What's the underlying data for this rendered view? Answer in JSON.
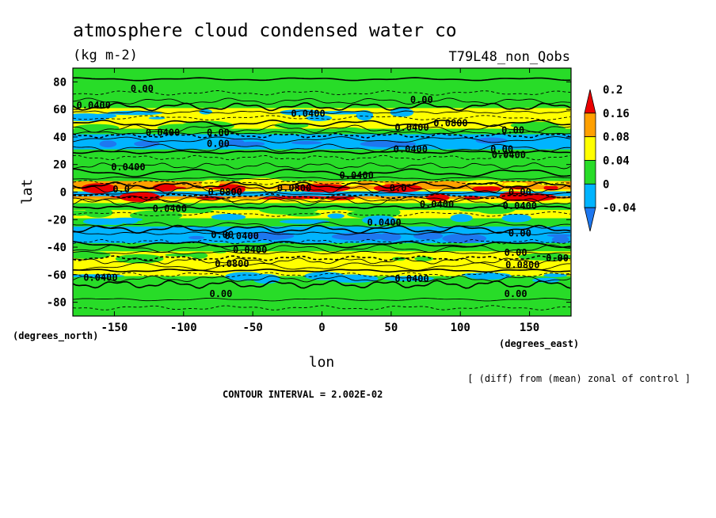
{
  "chart_data": {
    "type": "heatmap",
    "title": "atmosphere cloud condensed water co",
    "units": "(kg m-2)",
    "run_label": "T79L48_non_Qobs",
    "xlabel": "lon",
    "ylabel": "lat",
    "x_unit_label": "(degrees_east)",
    "y_unit_label": "(degrees_north)",
    "xlim": [
      -180,
      180
    ],
    "ylim": [
      -90,
      90
    ],
    "x_ticks": [
      -150,
      -100,
      -50,
      0,
      50,
      100,
      150
    ],
    "y_ticks": [
      80,
      60,
      40,
      20,
      0,
      -20,
      -40,
      -60,
      -80
    ],
    "colorbar": {
      "levels": [
        -0.04,
        0,
        0.04,
        0.08,
        0.16,
        0.2
      ],
      "tick_labels": [
        "-0.04",
        "0",
        "0.04",
        "0.08",
        "0.16",
        "0.2"
      ],
      "colors": [
        "#1e78f0",
        "#00b4ff",
        "#28dc28",
        "#ffff00",
        "#ffa000",
        "#eb0000"
      ]
    },
    "lat_profile": [
      {
        "lat": 85,
        "value": 0.0
      },
      {
        "lat": 75,
        "value": 0.0
      },
      {
        "lat": 68,
        "value": 0.01
      },
      {
        "lat": 64,
        "value": 0.02
      },
      {
        "lat": 58,
        "value": 0.05
      },
      {
        "lat": 52,
        "value": 0.05
      },
      {
        "lat": 48,
        "value": 0.06
      },
      {
        "lat": 44,
        "value": 0.03
      },
      {
        "lat": 40,
        "value": -0.02
      },
      {
        "lat": 34,
        "value": -0.03
      },
      {
        "lat": 28,
        "value": 0.01
      },
      {
        "lat": 22,
        "value": 0.02
      },
      {
        "lat": 16,
        "value": 0.03
      },
      {
        "lat": 10,
        "value": 0.02
      },
      {
        "lat": 6,
        "value": 0.08
      },
      {
        "lat": 3,
        "value": 0.14
      },
      {
        "lat": 1,
        "value": 0.06
      },
      {
        "lat": 0,
        "value": -0.02
      },
      {
        "lat": -2,
        "value": -0.03
      },
      {
        "lat": -4,
        "value": 0.1
      },
      {
        "lat": -6,
        "value": 0.06
      },
      {
        "lat": -10,
        "value": 0.03
      },
      {
        "lat": -16,
        "value": 0.04
      },
      {
        "lat": -22,
        "value": 0.01
      },
      {
        "lat": -28,
        "value": -0.03
      },
      {
        "lat": -34,
        "value": -0.03
      },
      {
        "lat": -40,
        "value": 0.01
      },
      {
        "lat": -46,
        "value": 0.05
      },
      {
        "lat": -52,
        "value": 0.07
      },
      {
        "lat": -58,
        "value": 0.04
      },
      {
        "lat": -64,
        "value": 0.01
      },
      {
        "lat": -72,
        "value": 0.0
      },
      {
        "lat": -85,
        "value": 0.0
      }
    ],
    "contour_labels": [
      {
        "text": "0.00",
        "lon": -130,
        "lat": 75
      },
      {
        "text": "0.0400",
        "lon": -165,
        "lat": 63
      },
      {
        "text": "0.00",
        "lon": 72,
        "lat": 67
      },
      {
        "text": "0.0400",
        "lon": -10,
        "lat": 57
      },
      {
        "text": "0.0800",
        "lon": 93,
        "lat": 50
      },
      {
        "text": "0.0400",
        "lon": 65,
        "lat": 47
      },
      {
        "text": "0.00",
        "lon": 138,
        "lat": 45
      },
      {
        "text": "0.0400",
        "lon": -115,
        "lat": 43
      },
      {
        "text": "0.00",
        "lon": -75,
        "lat": 43
      },
      {
        "text": "0.00",
        "lon": -75,
        "lat": 35
      },
      {
        "text": "0.0400",
        "lon": 64,
        "lat": 31
      },
      {
        "text": "0.00",
        "lon": 130,
        "lat": 31
      },
      {
        "text": "0.0400",
        "lon": 135,
        "lat": 27
      },
      {
        "text": "0.0400",
        "lon": -140,
        "lat": 18
      },
      {
        "text": "0.0400",
        "lon": 25,
        "lat": 12
      },
      {
        "text": "0.0",
        "lon": -145,
        "lat": 2
      },
      {
        "text": "0.0800",
        "lon": -70,
        "lat": 0
      },
      {
        "text": "0.0800",
        "lon": -20,
        "lat": 3
      },
      {
        "text": "0.0",
        "lon": 55,
        "lat": 3
      },
      {
        "text": "0.00",
        "lon": 143,
        "lat": 0
      },
      {
        "text": "0.0400",
        "lon": -110,
        "lat": -12
      },
      {
        "text": "0.0400",
        "lon": 83,
        "lat": -9
      },
      {
        "text": "0.0400",
        "lon": 143,
        "lat": -10
      },
      {
        "text": "0.0400",
        "lon": 45,
        "lat": -22
      },
      {
        "text": "0.00",
        "lon": 143,
        "lat": -30
      },
      {
        "text": "0.0400",
        "lon": -58,
        "lat": -32
      },
      {
        "text": "0.00",
        "lon": -72,
        "lat": -31
      },
      {
        "text": "0.0400",
        "lon": -52,
        "lat": -42
      },
      {
        "text": "0.0800",
        "lon": -65,
        "lat": -52
      },
      {
        "text": "0.00",
        "lon": 140,
        "lat": -44
      },
      {
        "text": "0.0800",
        "lon": 145,
        "lat": -53
      },
      {
        "text": "0.00",
        "lon": 170,
        "lat": -48
      },
      {
        "text": "0.0400",
        "lon": -160,
        "lat": -62
      },
      {
        "text": "0.0400",
        "lon": 65,
        "lat": -63
      },
      {
        "text": "0.00",
        "lon": -73,
        "lat": -74
      },
      {
        "text": "0.00",
        "lon": 140,
        "lat": -74
      }
    ]
  },
  "footer": {
    "diff_note": "[ (diff) from (mean) zonal of control ]",
    "contour_interval": "CONTOUR INTERVAL = 2.002E-02"
  }
}
